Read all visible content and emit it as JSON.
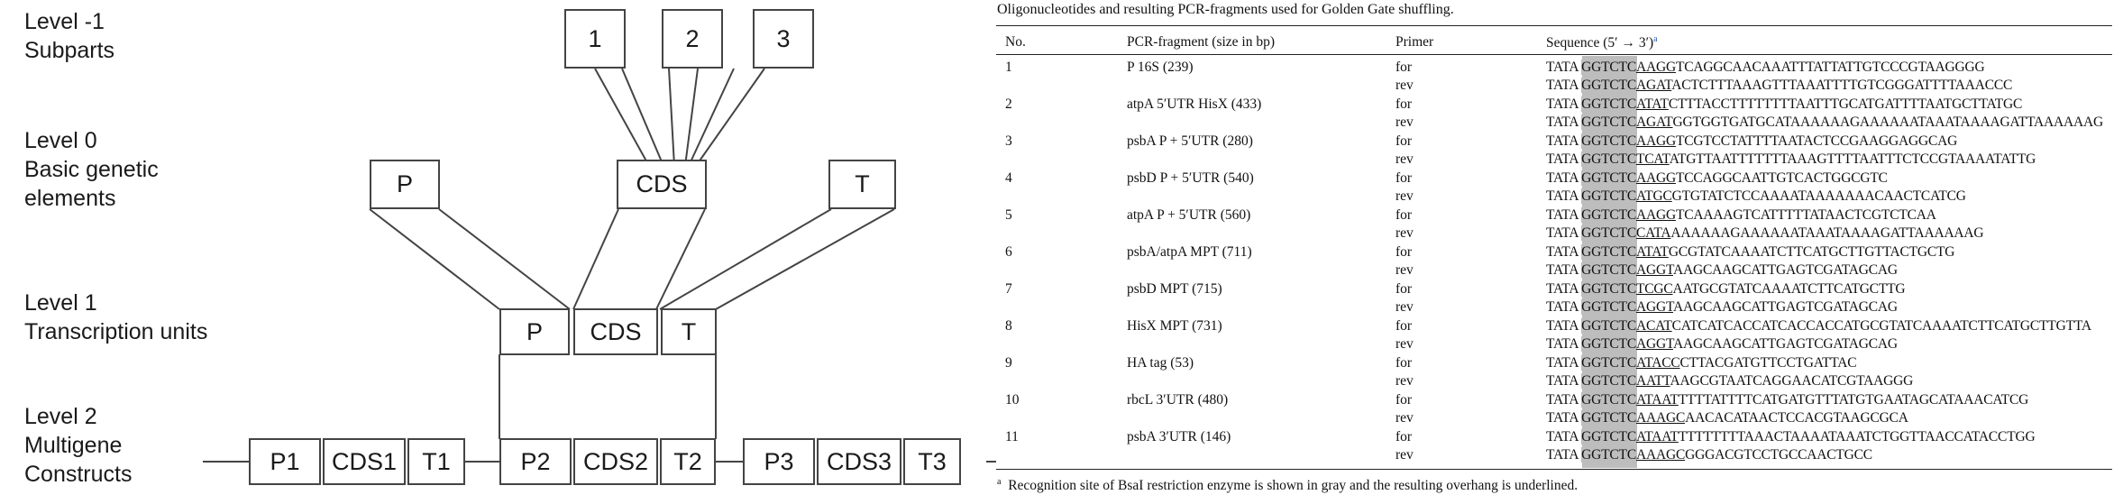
{
  "diagram": {
    "levels": [
      {
        "lines": [
          "Level -1",
          "Subparts"
        ]
      },
      {
        "lines": [
          "Level 0",
          "Basic genetic",
          "elements"
        ]
      },
      {
        "lines": [
          "Level 1",
          "Transcription units"
        ]
      },
      {
        "lines": [
          "Level 2",
          "Multigene",
          "Constructs"
        ]
      }
    ],
    "subparts": [
      "1",
      "2",
      "3"
    ],
    "level0": [
      "P",
      "CDS",
      "T"
    ],
    "level1": [
      "P",
      "CDS",
      "T"
    ],
    "level2": [
      "P1",
      "CDS1",
      "T1",
      "P2",
      "CDS2",
      "T2",
      "P3",
      "CDS3",
      "T3"
    ]
  },
  "table": {
    "caption": "Oligonucleotides and resulting PCR-fragments used for Golden Gate shuffling.",
    "headers": {
      "no": "No.",
      "fragment": "PCR-fragment (size in bp)",
      "primer": "Primer",
      "sequence": "Sequence (5′ → 3′)",
      "sequence_note": "a"
    },
    "rows": [
      {
        "no": "1",
        "fragment": "P 16S (239)",
        "primers": [
          {
            "dir": "for",
            "pre": "TATA ",
            "site": "GGTCTC",
            "ovh": "AAGG",
            "rest": "TCAGGCAACAAATTTATTATTGTCCCGTAAGGGG"
          },
          {
            "dir": "rev",
            "pre": "TATA ",
            "site": "GGTCTC",
            "ovh": "AGAT",
            "rest": "ACTCTTTAAAGTTTAAATTTTGTCGGGATTTTAAACCC"
          }
        ]
      },
      {
        "no": "2",
        "fragment": "atpA 5′UTR HisX (433)",
        "primers": [
          {
            "dir": "for",
            "pre": "TATA ",
            "site": "GGTCTC",
            "ovh": "ATAT",
            "rest": "CTTTACCTTTTTTTTAATTTGCATGATTTTAATGCTTATGC"
          },
          {
            "dir": "rev",
            "pre": "TATA ",
            "site": "GGTCTC",
            "ovh": "AGAT",
            "rest": "GGTGGTGATGCATAAAAAAGAAAAAATAAATAAAAGATTAAAAAAG"
          }
        ]
      },
      {
        "no": "3",
        "fragment": "psbA P + 5′UTR (280)",
        "primers": [
          {
            "dir": "for",
            "pre": "TATA ",
            "site": "GGTCTC",
            "ovh": "AAGG",
            "rest": "TCGTCCTATTTTAATACTCCGAAGGAGGCAG"
          },
          {
            "dir": "rev",
            "pre": "TATA ",
            "site": "GGTCTC",
            "ovh": "TCAT",
            "rest": "ATGTTAATTTTTTTAAAGTTTTAATTTCTCCGTAAAATATTG"
          }
        ]
      },
      {
        "no": "4",
        "fragment": "psbD P + 5′UTR (540)",
        "primers": [
          {
            "dir": "for",
            "pre": "TATA ",
            "site": "GGTCTC",
            "ovh": "AAGG",
            "rest": "TCCAGGCAATTGTCACTGGCGTC"
          },
          {
            "dir": "rev",
            "pre": "TATA ",
            "site": "GGTCTC",
            "ovh": "ATGC",
            "rest": "GTGTATCTCCAAAATAAAAAAACAACTCATCG"
          }
        ]
      },
      {
        "no": "5",
        "fragment": "atpA P + 5′UTR (560)",
        "primers": [
          {
            "dir": "for",
            "pre": "TATA ",
            "site": "GGTCTC",
            "ovh": "AAGG",
            "rest": "TCAAAAGTCATTTTTATAACTCGTCTCAA"
          },
          {
            "dir": "rev",
            "pre": "TATA ",
            "site": "GGTCTC",
            "ovh": "CATA",
            "rest": "AAAAAAGAAAAAATAAATAAAAGATTAAAAAAG"
          }
        ]
      },
      {
        "no": "6",
        "fragment": "psbA/atpA MPT (711)",
        "primers": [
          {
            "dir": "for",
            "pre": "TATA ",
            "site": "GGTCTC",
            "ovh": "ATAT",
            "rest": "GCGTATCAAAATCTTCATGCTTGTTACTGCTG"
          },
          {
            "dir": "rev",
            "pre": "TATA ",
            "site": "GGTCTC",
            "ovh": "AGGT",
            "rest": "AAGCAAGCATTGAGTCGATAGCAG"
          }
        ]
      },
      {
        "no": "7",
        "fragment": "psbD MPT (715)",
        "primers": [
          {
            "dir": "for",
            "pre": "TATA ",
            "site": "GGTCTC",
            "ovh": "TCGC",
            "rest": "AATGCGTATCAAAATCTTCATGCTTG"
          },
          {
            "dir": "rev",
            "pre": "TATA ",
            "site": "GGTCTC",
            "ovh": "AGGT",
            "rest": "AAGCAAGCATTGAGTCGATAGCAG"
          }
        ]
      },
      {
        "no": "8",
        "fragment": "HisX MPT (731)",
        "primers": [
          {
            "dir": "for",
            "pre": "TATA ",
            "site": "GGTCTC",
            "ovh": "ACAT",
            "rest": "CATCATCACCATCACCACCATGCGTATCAAAATCTTCATGCTTGTTA"
          },
          {
            "dir": "rev",
            "pre": "TATA ",
            "site": "GGTCTC",
            "ovh": "AGGT",
            "rest": "AAGCAAGCATTGAGTCGATAGCAG"
          }
        ]
      },
      {
        "no": "9",
        "fragment": "HA tag (53)",
        "primers": [
          {
            "dir": "for",
            "pre": "TATA ",
            "site": "GGTCTC",
            "ovh": "ATACC",
            "rest": "CTTACGATGTTCCTGATTAC"
          },
          {
            "dir": "rev",
            "pre": "TATA ",
            "site": "GGTCTC",
            "ovh": "AATT",
            "rest": "AAGCGTAATCAGGAACATCGTAAGGG"
          }
        ]
      },
      {
        "no": "10",
        "fragment": "rbcL 3′UTR (480)",
        "primers": [
          {
            "dir": "for",
            "pre": "TATA ",
            "site": "GGTCTC",
            "ovh": "ATAAT",
            "rest": "TTTTATTTTCATGATGTTTATGTGAATAGCATAAACATCG"
          },
          {
            "dir": "rev",
            "pre": "TATA ",
            "site": "GGTCTC",
            "ovh": "AAAGC",
            "rest": "AACACATAACTCCACGTAAGCGCA"
          }
        ]
      },
      {
        "no": "11",
        "fragment": "psbA 3′UTR (146)",
        "primers": [
          {
            "dir": "for",
            "pre": "TATA ",
            "site": "GGTCTC",
            "ovh": "ATAAT",
            "rest": "TTTTTTTTAAACTAAAATAAATCTGGTTAACCATACCTGG"
          },
          {
            "dir": "rev",
            "pre": "TATA ",
            "site": "GGTCTC",
            "ovh": "AAAGC",
            "rest": "GGGACGTCCTGCCAACTGCC"
          }
        ]
      }
    ],
    "footnote_mark": "a",
    "footnote": "Recognition site of BsaI restriction enzyme is shown in gray and the resulting overhang is underlined."
  }
}
